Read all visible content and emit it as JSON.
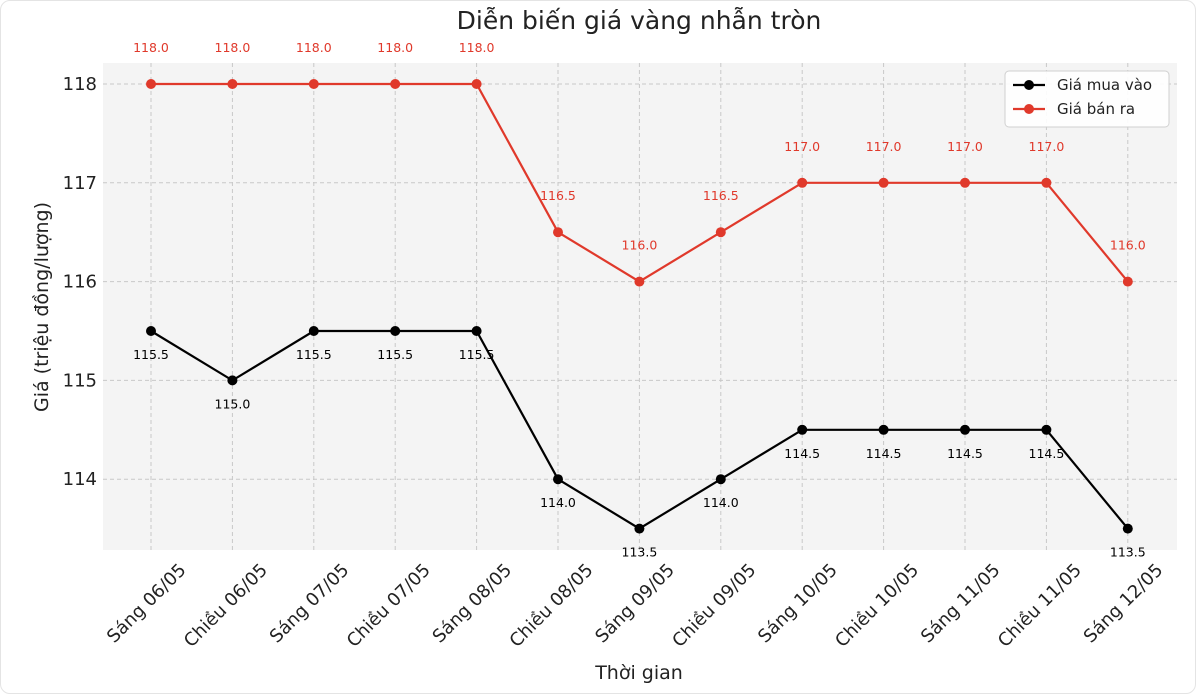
{
  "chart_data": {
    "type": "line",
    "title": "Diễn biến giá vàng nhẫn tròn",
    "xlabel": "Thời gian",
    "ylabel": "Giá (triệu đồng/lượng)",
    "categories": [
      "Sáng 06/05",
      "Chiều 06/05",
      "Sáng 07/05",
      "Chiều 07/05",
      "Sáng 08/05",
      "Chiều 08/05",
      "Sáng 09/05",
      "Chiều 09/05",
      "Sáng 10/05",
      "Chiều 10/05",
      "Sáng 11/05",
      "Chiều 11/05",
      "Sáng 12/05"
    ],
    "series": [
      {
        "name": "Giá mua vào",
        "color": "#000000",
        "values": [
          115.5,
          115.0,
          115.5,
          115.5,
          115.5,
          114.0,
          113.5,
          114.0,
          114.5,
          114.5,
          114.5,
          114.5,
          113.5
        ],
        "labels": [
          "115.5",
          "115.0",
          "115.5",
          "115.5",
          "115.5",
          "114.0",
          "113.5",
          "114.0",
          "114.5",
          "114.5",
          "114.5",
          "114.5",
          "113.5"
        ]
      },
      {
        "name": "Giá bán ra",
        "color": "#e0392b",
        "values": [
          118.0,
          118.0,
          118.0,
          118.0,
          118.0,
          116.5,
          116.0,
          116.5,
          117.0,
          117.0,
          117.0,
          117.0,
          116.0
        ],
        "labels": [
          "118.0",
          "118.0",
          "118.0",
          "118.0",
          "118.0",
          "116.5",
          "116.0",
          "116.5",
          "117.0",
          "117.0",
          "117.0",
          "117.0",
          "116.0"
        ]
      }
    ],
    "yticks": [
      114,
      115,
      116,
      117,
      118
    ],
    "ytick_labels": [
      "114",
      "115",
      "116",
      "117",
      "118"
    ],
    "ylim": [
      113.3,
      118.2
    ],
    "grid": true,
    "legend": "top-right",
    "colors": {
      "plot_bg": "#f4f4f4",
      "grid": "#c8c8c8"
    }
  }
}
